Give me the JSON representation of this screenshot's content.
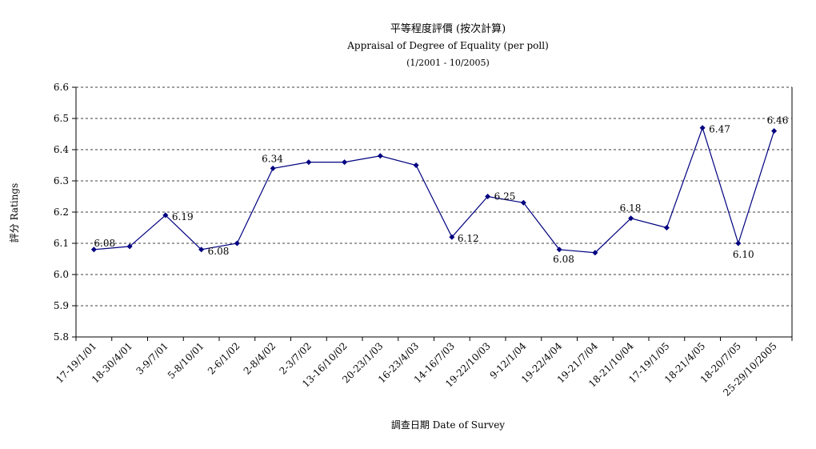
{
  "chart_data": {
    "type": "line",
    "title": "平等程度評價 (按次計算)",
    "subtitle": "Appraisal of Degree of Equality (per poll)",
    "date_range": "(1/2001 - 10/2005)",
    "xlabel": "調查日期 Date of Survey",
    "ylabel": "評分 Ratings",
    "ylim": [
      5.8,
      6.6
    ],
    "yticks": [
      "5.8",
      "5.9",
      "6.0",
      "6.1",
      "6.2",
      "6.3",
      "6.4",
      "6.5",
      "6.6"
    ],
    "grid": "horizontal dashed",
    "line_color": "#000080",
    "categories": [
      "17-19/1/01",
      "18-30/4/01",
      "3-9/7/01",
      "5-8/10/01",
      "2-6/1/02",
      "2-8/4/02",
      "2-3/7/02",
      "13-16/10/02",
      "20-23/1/03",
      "16-23/4/03",
      "14-16/7/03",
      "19-22/10/03",
      "9-12/1/04",
      "19-22/4/04",
      "19-21/7/04",
      "18-21/10/04",
      "17-19/1/05",
      "18-21/4/05",
      "18-20/7/05",
      "25-29/10/2005"
    ],
    "values": [
      6.08,
      6.09,
      6.19,
      6.08,
      6.1,
      6.34,
      6.36,
      6.36,
      6.38,
      6.35,
      6.12,
      6.25,
      6.23,
      6.08,
      6.07,
      6.18,
      6.15,
      6.47,
      6.1,
      6.46
    ],
    "data_labels": [
      {
        "index": 0,
        "text": "6.08"
      },
      {
        "index": 2,
        "text": "6.19"
      },
      {
        "index": 3,
        "text": "6.08"
      },
      {
        "index": 5,
        "text": "6.34"
      },
      {
        "index": 10,
        "text": "6.12"
      },
      {
        "index": 11,
        "text": "6.25"
      },
      {
        "index": 13,
        "text": "6.08"
      },
      {
        "index": 15,
        "text": "6.18"
      },
      {
        "index": 17,
        "text": "6.47"
      },
      {
        "index": 18,
        "text": "6.10"
      },
      {
        "index": 19,
        "text": "6.46"
      }
    ]
  }
}
